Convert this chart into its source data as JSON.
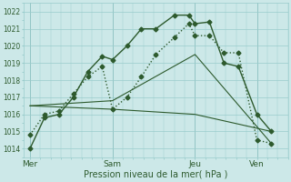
{
  "bg_color": "#cce8e8",
  "grid_color": "#99cccc",
  "line_color": "#2d5a2d",
  "title": "Pression niveau de la mer( hPa )",
  "ylim": [
    1013.5,
    1022.5
  ],
  "yticks": [
    1014,
    1015,
    1016,
    1017,
    1018,
    1019,
    1020,
    1021,
    1022
  ],
  "xtick_labels": [
    "Mer",
    "Sam",
    "Jeu",
    "Ven"
  ],
  "xtick_positions": [
    0,
    4,
    8,
    11
  ],
  "xlim": [
    -0.3,
    12.5
  ],
  "line1_x": [
    0,
    0.7,
    1.4,
    2.1,
    2.8,
    3.5,
    4,
    4.7,
    5.4,
    6.1,
    7,
    7.7,
    8,
    8.7,
    9.4,
    10.1,
    11,
    11.7
  ],
  "line1_y": [
    1014.0,
    1015.8,
    1016.0,
    1017.0,
    1018.5,
    1019.4,
    1019.2,
    1020.0,
    1021.0,
    1021.0,
    1021.8,
    1021.8,
    1021.3,
    1021.4,
    1019.0,
    1018.8,
    1016.0,
    1015.0
  ],
  "line2_x": [
    0,
    0.7,
    1.4,
    2.1,
    2.8,
    3.5,
    4,
    4.7,
    5.4,
    6.1,
    7,
    7.7,
    8,
    8.7,
    9.4,
    10.1,
    11,
    11.7
  ],
  "line2_y": [
    1014.8,
    1016.0,
    1016.2,
    1017.2,
    1018.2,
    1018.8,
    1016.3,
    1017.0,
    1018.2,
    1019.5,
    1020.5,
    1021.3,
    1020.6,
    1020.6,
    1019.6,
    1019.6,
    1014.5,
    1014.3
  ],
  "line3_x": [
    0,
    4,
    8,
    11.7
  ],
  "line3_y": [
    1016.5,
    1016.8,
    1019.5,
    1014.3
  ],
  "line4_x": [
    0,
    4,
    8,
    11.7
  ],
  "line4_y": [
    1016.5,
    1016.3,
    1016.0,
    1015.0
  ],
  "vline_positions": [
    0,
    4,
    8,
    11
  ]
}
